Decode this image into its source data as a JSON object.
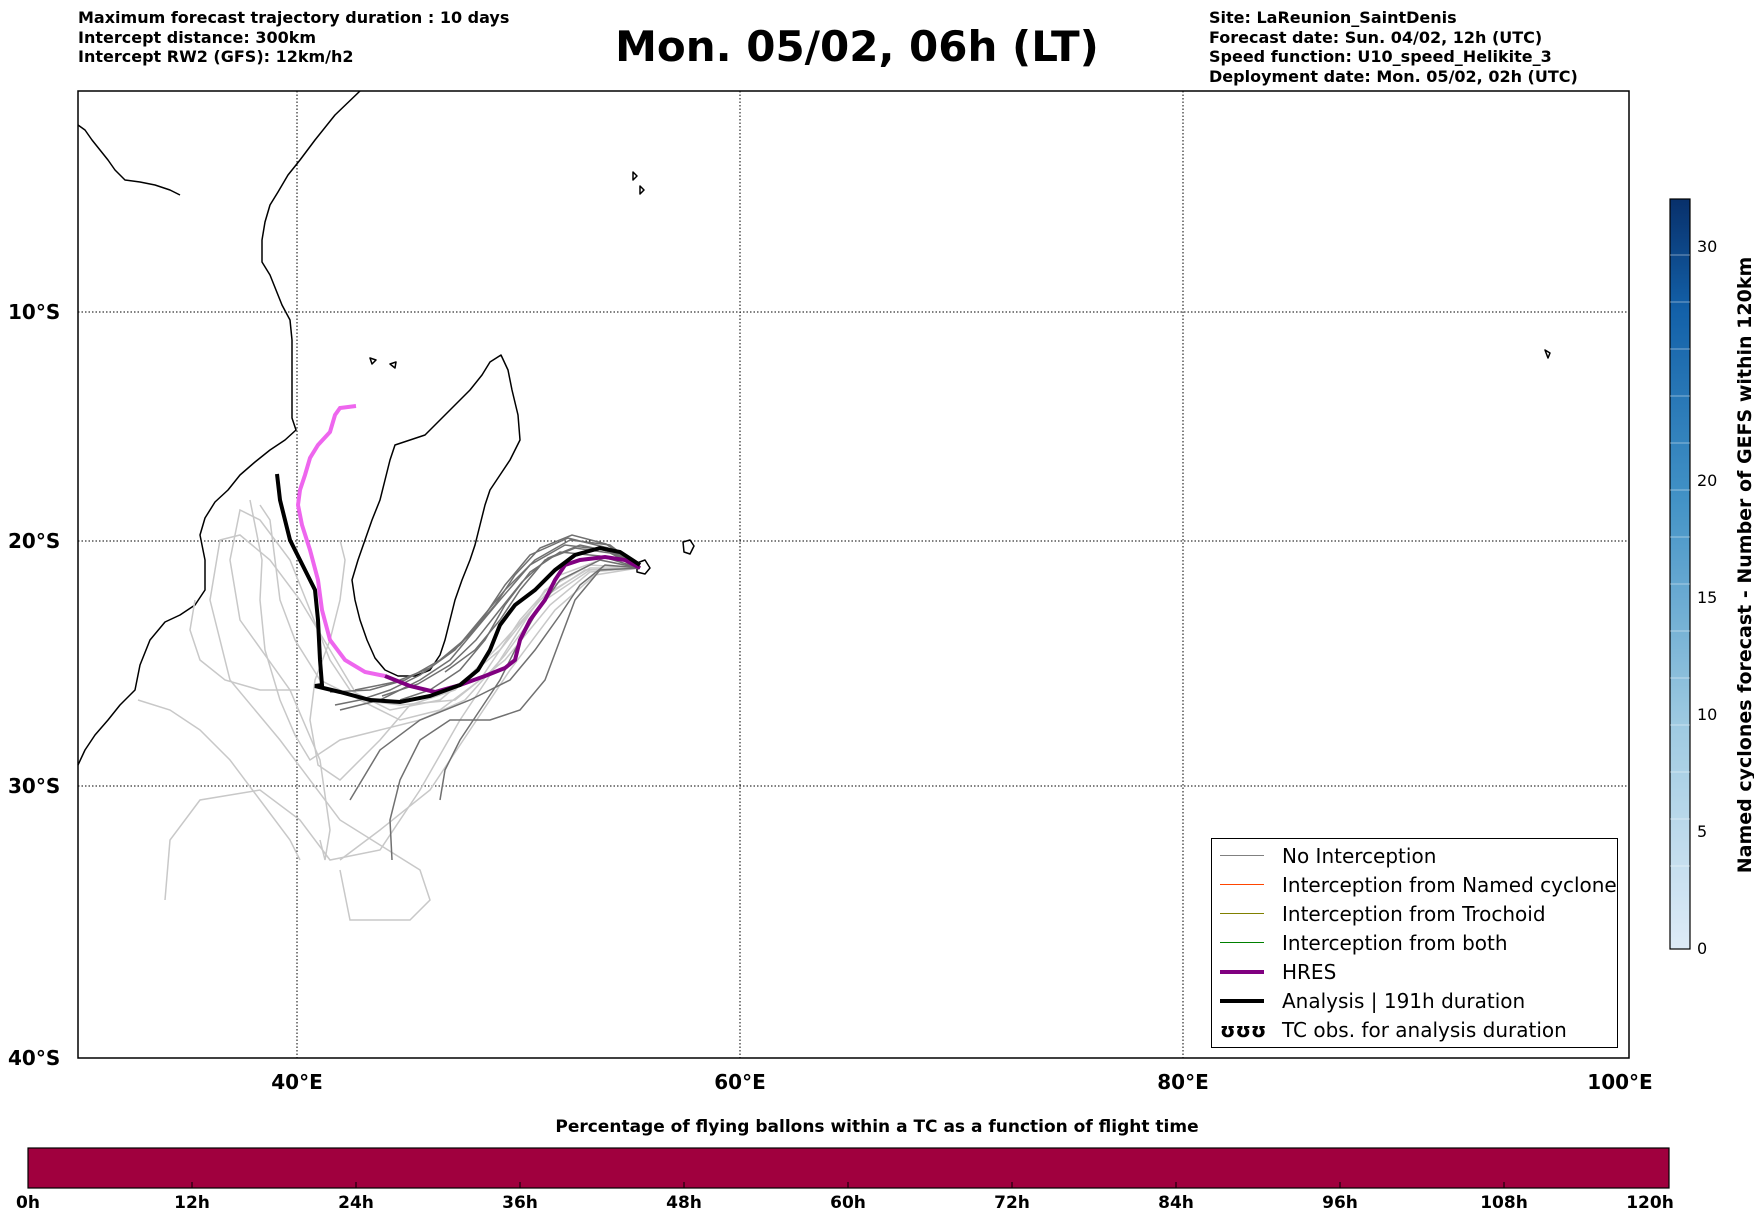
{
  "header_left": {
    "line1": "Maximum forecast trajectory duration : 10 days",
    "line2": "Intercept distance: 300km",
    "line3": "Intercept RW2 (GFS):  12km/h2"
  },
  "title": "Mon. 05/02, 06h (LT)",
  "header_right": {
    "line1": "Site: LaReunion_SaintDenis",
    "line2": "Forecast date: Sun. 04/02, 12h (UTC)",
    "line3": "Speed function: U10_speed_Helikite_3",
    "line4": "Deployment date: Mon. 05/02, 02h (UTC)"
  },
  "map": {
    "lon_range": [
      30,
      100
    ],
    "lat_range": [
      -40,
      -0.5
    ],
    "lat_labels": [
      "10°S",
      "20°S",
      "30°S",
      "40°S"
    ],
    "lon_labels": [
      "40°E",
      "60°E",
      "80°E",
      "100°E"
    ],
    "gridlines": true
  },
  "colorbar_right": {
    "label": "Named cyclones forecast - Number of GEFS within 120km",
    "ticks": [
      "0",
      "5",
      "10",
      "15",
      "20",
      "30"
    ],
    "range": [
      0,
      32
    ],
    "colors": [
      "#deebf7",
      "#08306b"
    ]
  },
  "legend": {
    "items": [
      {
        "label": "No Interception",
        "color": "#808080",
        "width": 1
      },
      {
        "label": "Interception from Named cyclone",
        "color": "#ff4500",
        "width": 1
      },
      {
        "label": "Interception from Trochoid",
        "color": "#808000",
        "width": 1
      },
      {
        "label": "Interception from both",
        "color": "#008000",
        "width": 1
      },
      {
        "label": "HRES",
        "color": "#800080",
        "width": 4
      },
      {
        "label": "Analysis | 191h duration",
        "color": "#000000",
        "width": 4
      },
      {
        "label": "TC obs. for analysis duration",
        "symbol": "ʊʊʊ"
      }
    ]
  },
  "bottom_colorbar": {
    "title": "Percentage of flying ballons within a TC as a function of flight time",
    "ticks": [
      "0h",
      "12h",
      "24h",
      "36h",
      "48h",
      "60h",
      "72h",
      "84h",
      "96h",
      "108h",
      "120h"
    ],
    "color": "#a0003e"
  },
  "colors": {
    "no_interception": "#808080",
    "light_ensemble": "#c8c8c8",
    "hres": "#800080",
    "hres_early": "#ee66ee",
    "analysis": "#000000"
  }
}
